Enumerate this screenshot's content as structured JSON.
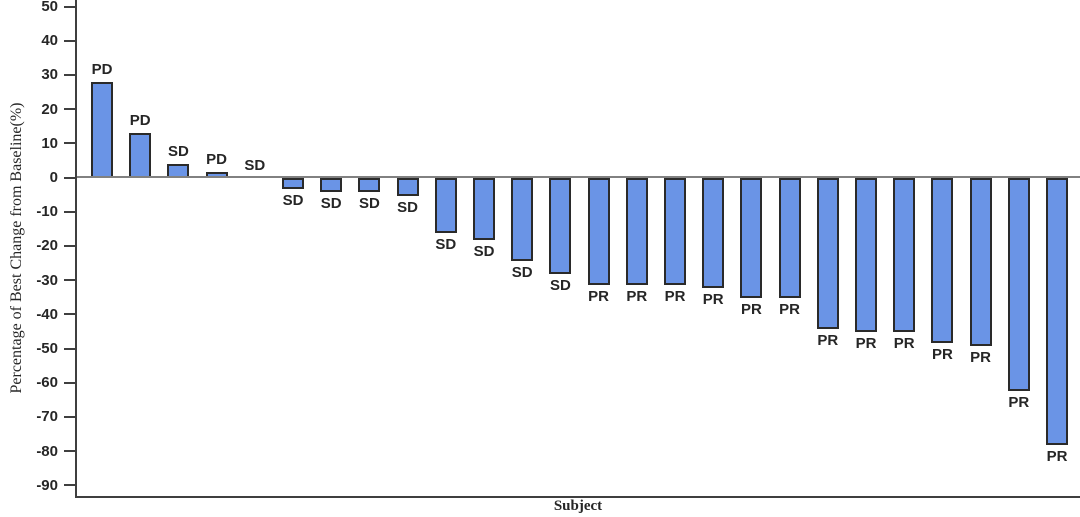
{
  "chart_data": {
    "type": "bar",
    "subtype": "waterfall",
    "title": "",
    "xlabel": "Subject",
    "ylabel": "Percentage of Best Change from Baseline(%)",
    "ylim": [
      -93,
      52
    ],
    "yticks": [
      50,
      40,
      30,
      20,
      10,
      0,
      -10,
      -20,
      -30,
      -40,
      -50,
      -60,
      -70,
      -80,
      -90
    ],
    "grid": false,
    "legend": "none",
    "bars": [
      {
        "response": "PD",
        "value": 28
      },
      {
        "response": "PD",
        "value": 13
      },
      {
        "response": "SD",
        "value": 4
      },
      {
        "response": "PD",
        "value": 1.5
      },
      {
        "response": "SD",
        "value": 0
      },
      {
        "response": "SD",
        "value": -3
      },
      {
        "response": "SD",
        "value": -4
      },
      {
        "response": "SD",
        "value": -4
      },
      {
        "response": "SD",
        "value": -5
      },
      {
        "response": "SD",
        "value": -16
      },
      {
        "response": "SD",
        "value": -18
      },
      {
        "response": "SD",
        "value": -24
      },
      {
        "response": "SD",
        "value": -28
      },
      {
        "response": "PR",
        "value": -31
      },
      {
        "response": "PR",
        "value": -31
      },
      {
        "response": "PR",
        "value": -31
      },
      {
        "response": "PR",
        "value": -32
      },
      {
        "response": "PR",
        "value": -35
      },
      {
        "response": "PR",
        "value": -35
      },
      {
        "response": "PR",
        "value": -44
      },
      {
        "response": "PR",
        "value": -45
      },
      {
        "response": "PR",
        "value": -45
      },
      {
        "response": "PR",
        "value": -48
      },
      {
        "response": "PR",
        "value": -49
      },
      {
        "response": "PR",
        "value": -62
      },
      {
        "response": "PR",
        "value": -78
      }
    ]
  },
  "colors": {
    "bar_fill": "#6A94E6",
    "bar_border": "#2A2A2A",
    "zero_line": "#818181",
    "axis_line": "#3F3F3F",
    "text": "#262626"
  }
}
